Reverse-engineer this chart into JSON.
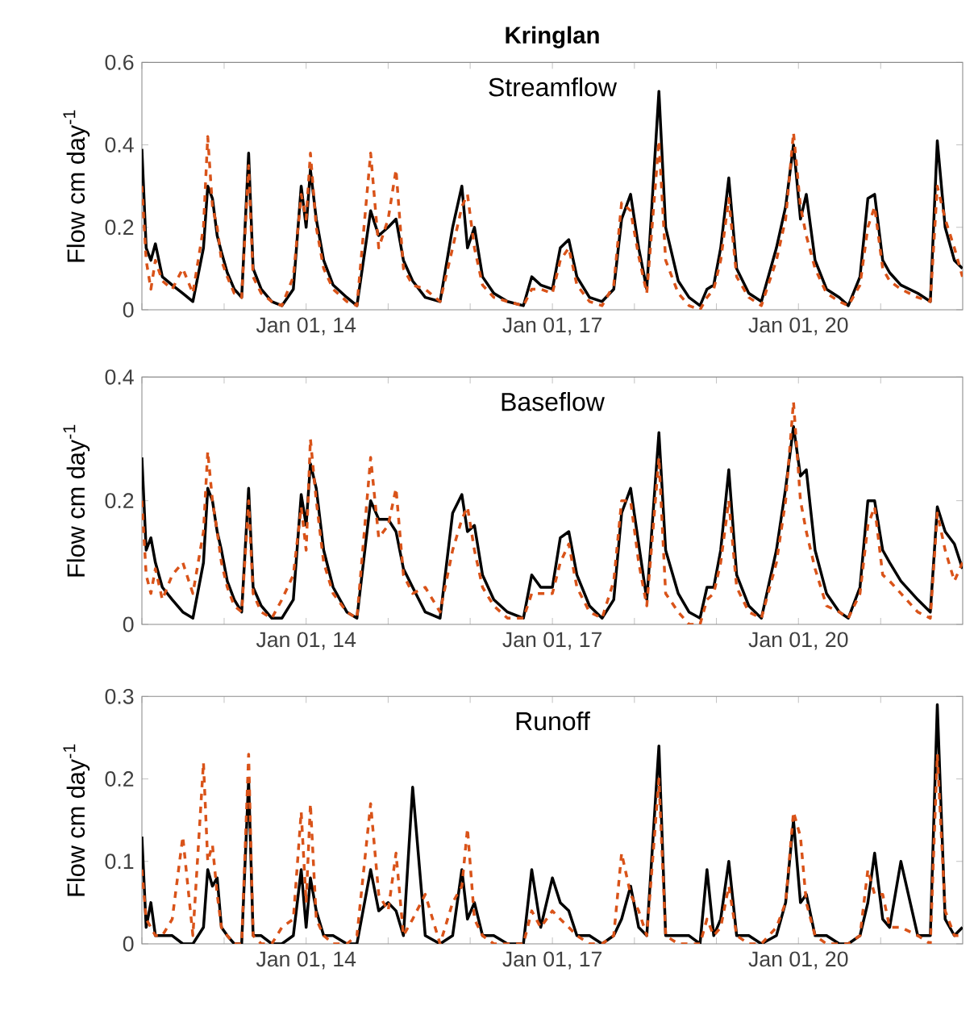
{
  "chart_data": [
    {
      "type": "line",
      "title": "Kringlan",
      "subtitle": "Streamflow",
      "ylabel": "Flow cm day$^{-1}$",
      "x": [
        "2012-01-01",
        "2012-01-20",
        "2012-02-10",
        "2012-03-01",
        "2012-04-01",
        "2012-05-15",
        "2012-07-01",
        "2012-08-15",
        "2012-10-01",
        "2012-10-20",
        "2012-11-10",
        "2012-12-01",
        "2012-12-20",
        "2013-01-15",
        "2013-02-15",
        "2013-03-20",
        "2013-04-20",
        "2013-05-10",
        "2013-06-15",
        "2013-08-01",
        "2013-09-15",
        "2013-11-05",
        "2013-12-10",
        "2014-01-01",
        "2014-01-20",
        "2014-02-15",
        "2014-03-20",
        "2014-05-01",
        "2014-07-01",
        "2014-08-15",
        "2014-10-15",
        "2014-11-20",
        "2015-01-01",
        "2015-02-05",
        "2015-03-10",
        "2015-04-20",
        "2015-06-15",
        "2015-08-20",
        "2015-10-15",
        "2015-11-25",
        "2015-12-20",
        "2016-01-20",
        "2016-02-25",
        "2016-04-15",
        "2016-06-15",
        "2016-08-25",
        "2016-10-01",
        "2016-11-10",
        "2017-01-01",
        "2017-02-05",
        "2017-03-15",
        "2017-04-20",
        "2017-06-15",
        "2017-08-10",
        "2017-10-01",
        "2017-11-05",
        "2017-12-15",
        "2018-01-20",
        "2018-02-25",
        "2018-04-20",
        "2018-05-20",
        "2018-07-15",
        "2018-09-01",
        "2018-10-20",
        "2018-11-20",
        "2018-12-20",
        "2019-01-20",
        "2019-02-25",
        "2019-04-01",
        "2019-05-25",
        "2019-07-20",
        "2019-09-25",
        "2019-11-05",
        "2019-12-10",
        "2020-01-10",
        "2020-02-05",
        "2020-03-15",
        "2020-05-05",
        "2020-07-01",
        "2020-08-10",
        "2020-10-01",
        "2020-11-05",
        "2020-12-05",
        "2021-01-10",
        "2021-02-10",
        "2021-04-01",
        "2021-06-15",
        "2021-08-10",
        "2021-09-10",
        "2021-10-15",
        "2021-11-25",
        "2021-12-31"
      ],
      "series": [
        {
          "color": "#000000",
          "line_style": "solid",
          "values": [
            0.39,
            0.15,
            0.12,
            0.16,
            0.08,
            0.06,
            0.04,
            0.02,
            0.15,
            0.3,
            0.27,
            0.18,
            0.14,
            0.09,
            0.05,
            0.03,
            0.38,
            0.1,
            0.05,
            0.02,
            0.01,
            0.05,
            0.3,
            0.2,
            0.34,
            0.22,
            0.12,
            0.06,
            0.03,
            0.01,
            0.24,
            0.18,
            0.2,
            0.22,
            0.12,
            0.07,
            0.03,
            0.02,
            0.2,
            0.3,
            0.15,
            0.2,
            0.08,
            0.04,
            0.02,
            0.01,
            0.08,
            0.06,
            0.05,
            0.15,
            0.17,
            0.08,
            0.03,
            0.02,
            0.05,
            0.22,
            0.28,
            0.15,
            0.05,
            0.53,
            0.2,
            0.07,
            0.03,
            0.01,
            0.05,
            0.06,
            0.15,
            0.32,
            0.1,
            0.04,
            0.02,
            0.15,
            0.25,
            0.4,
            0.22,
            0.28,
            0.12,
            0.05,
            0.03,
            0.01,
            0.08,
            0.27,
            0.28,
            0.12,
            0.09,
            0.06,
            0.04,
            0.02,
            0.41,
            0.2,
            0.12,
            0.1
          ]
        },
        {
          "color": "#d95319",
          "line_style": "dashed",
          "values": [
            0.3,
            0.12,
            0.05,
            0.12,
            0.07,
            0.05,
            0.1,
            0.04,
            0.2,
            0.42,
            0.25,
            0.2,
            0.12,
            0.08,
            0.04,
            0.03,
            0.35,
            0.08,
            0.04,
            0.02,
            0.01,
            0.08,
            0.28,
            0.22,
            0.38,
            0.2,
            0.1,
            0.05,
            0.02,
            0.01,
            0.38,
            0.15,
            0.22,
            0.34,
            0.1,
            0.06,
            0.05,
            0.02,
            0.15,
            0.25,
            0.28,
            0.15,
            0.06,
            0.03,
            0.02,
            0.01,
            0.05,
            0.05,
            0.04,
            0.12,
            0.15,
            0.06,
            0.02,
            0.01,
            0.06,
            0.26,
            0.24,
            0.13,
            0.04,
            0.41,
            0.12,
            0.04,
            0.01,
            0.0,
            0.03,
            0.05,
            0.12,
            0.27,
            0.08,
            0.03,
            0.01,
            0.12,
            0.22,
            0.43,
            0.25,
            0.18,
            0.1,
            0.04,
            0.02,
            0.01,
            0.06,
            0.2,
            0.25,
            0.1,
            0.07,
            0.05,
            0.03,
            0.02,
            0.3,
            0.22,
            0.15,
            0.08
          ]
        }
      ],
      "xlim": [
        "2012-01-01",
        "2022-01-01"
      ],
      "xticks": [
        {
          "value": "2012-01-01",
          "label": null
        },
        {
          "value": "2013-01-01",
          "label": null
        },
        {
          "value": "2014-01-01",
          "label": "Jan 01, 14"
        },
        {
          "value": "2015-01-01",
          "label": null
        },
        {
          "value": "2016-01-01",
          "label": null
        },
        {
          "value": "2017-01-01",
          "label": "Jan 01, 17"
        },
        {
          "value": "2018-01-01",
          "label": null
        },
        {
          "value": "2019-01-01",
          "label": null
        },
        {
          "value": "2020-01-01",
          "label": "Jan 01, 20"
        },
        {
          "value": "2021-01-01",
          "label": null
        }
      ],
      "ylim": [
        0,
        0.6
      ],
      "yticks": [
        0,
        0.2,
        0.4,
        0.6
      ]
    },
    {
      "type": "line",
      "subtitle": "Baseflow",
      "ylabel": "Flow cm day$^{-1}$",
      "x": [
        "2012-01-01",
        "2012-01-20",
        "2012-02-10",
        "2012-03-01",
        "2012-04-01",
        "2012-05-15",
        "2012-07-01",
        "2012-08-15",
        "2012-10-01",
        "2012-10-20",
        "2012-11-10",
        "2012-12-01",
        "2012-12-20",
        "2013-01-15",
        "2013-02-15",
        "2013-03-20",
        "2013-04-20",
        "2013-05-10",
        "2013-06-15",
        "2013-08-01",
        "2013-09-15",
        "2013-11-05",
        "2013-12-10",
        "2014-01-01",
        "2014-01-20",
        "2014-02-15",
        "2014-03-20",
        "2014-05-01",
        "2014-07-01",
        "2014-08-15",
        "2014-10-15",
        "2014-11-20",
        "2015-01-01",
        "2015-02-05",
        "2015-03-10",
        "2015-04-20",
        "2015-06-15",
        "2015-08-20",
        "2015-10-15",
        "2015-11-25",
        "2015-12-20",
        "2016-01-20",
        "2016-02-25",
        "2016-04-15",
        "2016-06-15",
        "2016-08-25",
        "2016-10-01",
        "2016-11-10",
        "2017-01-01",
        "2017-02-05",
        "2017-03-15",
        "2017-04-20",
        "2017-06-15",
        "2017-08-10",
        "2017-10-01",
        "2017-11-05",
        "2017-12-15",
        "2018-01-20",
        "2018-02-25",
        "2018-04-20",
        "2018-05-20",
        "2018-07-15",
        "2018-09-01",
        "2018-10-20",
        "2018-11-20",
        "2018-12-20",
        "2019-01-20",
        "2019-02-25",
        "2019-04-01",
        "2019-05-25",
        "2019-07-20",
        "2019-09-25",
        "2019-11-05",
        "2019-12-10",
        "2020-01-10",
        "2020-02-05",
        "2020-03-15",
        "2020-05-05",
        "2020-07-01",
        "2020-08-10",
        "2020-10-01",
        "2020-11-05",
        "2020-12-05",
        "2021-01-10",
        "2021-02-10",
        "2021-04-01",
        "2021-06-15",
        "2021-08-10",
        "2021-09-10",
        "2021-10-15",
        "2021-11-25",
        "2021-12-31"
      ],
      "series": [
        {
          "color": "#000000",
          "line_style": "solid",
          "values": [
            0.27,
            0.12,
            0.14,
            0.1,
            0.06,
            0.04,
            0.02,
            0.01,
            0.1,
            0.22,
            0.2,
            0.15,
            0.12,
            0.07,
            0.04,
            0.02,
            0.22,
            0.06,
            0.03,
            0.01,
            0.01,
            0.04,
            0.21,
            0.16,
            0.26,
            0.22,
            0.12,
            0.06,
            0.02,
            0.01,
            0.2,
            0.17,
            0.17,
            0.15,
            0.09,
            0.06,
            0.02,
            0.01,
            0.18,
            0.21,
            0.15,
            0.16,
            0.08,
            0.04,
            0.02,
            0.01,
            0.08,
            0.06,
            0.06,
            0.14,
            0.15,
            0.08,
            0.03,
            0.01,
            0.04,
            0.18,
            0.22,
            0.13,
            0.04,
            0.31,
            0.12,
            0.05,
            0.02,
            0.01,
            0.06,
            0.06,
            0.12,
            0.25,
            0.08,
            0.03,
            0.01,
            0.12,
            0.22,
            0.32,
            0.24,
            0.25,
            0.12,
            0.05,
            0.02,
            0.01,
            0.06,
            0.2,
            0.2,
            0.12,
            0.1,
            0.07,
            0.04,
            0.02,
            0.19,
            0.15,
            0.13,
            0.09
          ]
        },
        {
          "color": "#d95319",
          "line_style": "dashed",
          "values": [
            0.2,
            0.08,
            0.05,
            0.09,
            0.04,
            0.08,
            0.1,
            0.05,
            0.15,
            0.28,
            0.2,
            0.15,
            0.1,
            0.06,
            0.03,
            0.02,
            0.2,
            0.05,
            0.02,
            0.01,
            0.04,
            0.08,
            0.19,
            0.12,
            0.3,
            0.2,
            0.1,
            0.05,
            0.02,
            0.01,
            0.27,
            0.14,
            0.16,
            0.22,
            0.08,
            0.05,
            0.06,
            0.02,
            0.12,
            0.17,
            0.19,
            0.12,
            0.06,
            0.03,
            0.01,
            0.01,
            0.05,
            0.05,
            0.05,
            0.1,
            0.13,
            0.06,
            0.02,
            0.01,
            0.07,
            0.2,
            0.2,
            0.1,
            0.03,
            0.27,
            0.05,
            0.02,
            0.0,
            0.0,
            0.04,
            0.05,
            0.1,
            0.2,
            0.06,
            0.02,
            0.01,
            0.1,
            0.2,
            0.36,
            0.2,
            0.15,
            0.09,
            0.03,
            0.02,
            0.01,
            0.05,
            0.16,
            0.19,
            0.08,
            0.07,
            0.05,
            0.02,
            0.01,
            0.18,
            0.12,
            0.07,
            0.1
          ]
        }
      ],
      "xlim": [
        "2012-01-01",
        "2022-01-01"
      ],
      "xticks": [
        {
          "value": "2012-01-01",
          "label": null
        },
        {
          "value": "2013-01-01",
          "label": null
        },
        {
          "value": "2014-01-01",
          "label": "Jan 01, 14"
        },
        {
          "value": "2015-01-01",
          "label": null
        },
        {
          "value": "2016-01-01",
          "label": null
        },
        {
          "value": "2017-01-01",
          "label": "Jan 01, 17"
        },
        {
          "value": "2018-01-01",
          "label": null
        },
        {
          "value": "2019-01-01",
          "label": null
        },
        {
          "value": "2020-01-01",
          "label": "Jan 01, 20"
        },
        {
          "value": "2021-01-01",
          "label": null
        }
      ],
      "ylim": [
        0,
        0.4
      ],
      "yticks": [
        0,
        0.2,
        0.4
      ]
    },
    {
      "type": "line",
      "subtitle": "Runoff",
      "ylabel": "Flow cm day$^{-1}$",
      "x": [
        "2012-01-01",
        "2012-01-20",
        "2012-02-10",
        "2012-03-01",
        "2012-04-01",
        "2012-05-15",
        "2012-07-01",
        "2012-08-15",
        "2012-10-01",
        "2012-10-20",
        "2012-11-10",
        "2012-12-01",
        "2012-12-20",
        "2013-01-15",
        "2013-02-15",
        "2013-03-20",
        "2013-04-20",
        "2013-05-10",
        "2013-06-15",
        "2013-08-01",
        "2013-09-15",
        "2013-11-05",
        "2013-12-10",
        "2014-01-01",
        "2014-01-20",
        "2014-02-15",
        "2014-03-20",
        "2014-05-01",
        "2014-07-01",
        "2014-08-15",
        "2014-10-15",
        "2014-11-20",
        "2015-01-01",
        "2015-02-05",
        "2015-03-10",
        "2015-04-20",
        "2015-06-15",
        "2015-08-20",
        "2015-10-15",
        "2015-11-25",
        "2015-12-20",
        "2016-01-20",
        "2016-02-25",
        "2016-04-15",
        "2016-06-15",
        "2016-08-25",
        "2016-10-01",
        "2016-11-10",
        "2017-01-01",
        "2017-02-05",
        "2017-03-15",
        "2017-04-20",
        "2017-06-15",
        "2017-08-10",
        "2017-10-01",
        "2017-11-05",
        "2017-12-15",
        "2018-01-20",
        "2018-02-25",
        "2018-04-20",
        "2018-05-20",
        "2018-07-15",
        "2018-09-01",
        "2018-10-20",
        "2018-11-20",
        "2018-12-20",
        "2019-01-20",
        "2019-02-25",
        "2019-04-01",
        "2019-05-25",
        "2019-07-20",
        "2019-09-25",
        "2019-11-05",
        "2019-12-10",
        "2020-01-10",
        "2020-02-05",
        "2020-03-15",
        "2020-05-05",
        "2020-07-01",
        "2020-08-10",
        "2020-10-01",
        "2020-11-05",
        "2020-12-05",
        "2021-01-10",
        "2021-02-10",
        "2021-04-01",
        "2021-06-15",
        "2021-08-10",
        "2021-09-10",
        "2021-10-15",
        "2021-11-25",
        "2021-12-31"
      ],
      "series": [
        {
          "color": "#000000",
          "line_style": "solid",
          "values": [
            0.13,
            0.02,
            0.05,
            0.01,
            0.01,
            0.01,
            0.0,
            0.0,
            0.02,
            0.09,
            0.07,
            0.08,
            0.02,
            0.01,
            0.0,
            0.0,
            0.2,
            0.01,
            0.01,
            0.0,
            0.0,
            0.01,
            0.09,
            0.02,
            0.08,
            0.04,
            0.01,
            0.01,
            0.0,
            0.0,
            0.09,
            0.04,
            0.05,
            0.04,
            0.01,
            0.19,
            0.01,
            0.0,
            0.01,
            0.09,
            0.03,
            0.05,
            0.01,
            0.01,
            0.0,
            0.0,
            0.09,
            0.02,
            0.08,
            0.05,
            0.04,
            0.01,
            0.01,
            0.0,
            0.01,
            0.03,
            0.07,
            0.02,
            0.01,
            0.24,
            0.01,
            0.01,
            0.01,
            0.0,
            0.09,
            0.01,
            0.03,
            0.1,
            0.01,
            0.01,
            0.0,
            0.01,
            0.05,
            0.15,
            0.05,
            0.06,
            0.01,
            0.01,
            0.0,
            0.0,
            0.01,
            0.05,
            0.11,
            0.03,
            0.02,
            0.1,
            0.01,
            0.01,
            0.29,
            0.03,
            0.01,
            0.02
          ]
        },
        {
          "color": "#d95319",
          "line_style": "dashed",
          "values": [
            0.09,
            0.03,
            0.02,
            0.01,
            0.01,
            0.03,
            0.13,
            0.01,
            0.22,
            0.1,
            0.12,
            0.06,
            0.02,
            0.01,
            0.0,
            0.0,
            0.23,
            0.01,
            0.0,
            0.0,
            0.02,
            0.03,
            0.16,
            0.05,
            0.17,
            0.03,
            0.01,
            0.0,
            0.0,
            0.01,
            0.17,
            0.06,
            0.04,
            0.11,
            0.01,
            0.03,
            0.06,
            0.0,
            0.05,
            0.07,
            0.14,
            0.03,
            0.01,
            0.0,
            0.0,
            0.0,
            0.04,
            0.02,
            0.04,
            0.03,
            0.02,
            0.01,
            0.0,
            0.0,
            0.01,
            0.11,
            0.06,
            0.04,
            0.01,
            0.2,
            0.01,
            0.0,
            0.0,
            0.0,
            0.03,
            0.01,
            0.02,
            0.07,
            0.01,
            0.0,
            0.0,
            0.02,
            0.05,
            0.16,
            0.13,
            0.05,
            0.01,
            0.0,
            0.0,
            0.0,
            0.01,
            0.09,
            0.06,
            0.06,
            0.02,
            0.02,
            0.01,
            0.0,
            0.23,
            0.04,
            0.01,
            0.01
          ]
        }
      ],
      "xlim": [
        "2012-01-01",
        "2022-01-01"
      ],
      "xticks": [
        {
          "value": "2012-01-01",
          "label": null
        },
        {
          "value": "2013-01-01",
          "label": null
        },
        {
          "value": "2014-01-01",
          "label": "Jan 01, 14"
        },
        {
          "value": "2015-01-01",
          "label": null
        },
        {
          "value": "2016-01-01",
          "label": null
        },
        {
          "value": "2017-01-01",
          "label": "Jan 01, 17"
        },
        {
          "value": "2018-01-01",
          "label": null
        },
        {
          "value": "2019-01-01",
          "label": null
        },
        {
          "value": "2020-01-01",
          "label": "Jan 01, 20"
        },
        {
          "value": "2021-01-01",
          "label": null
        }
      ],
      "ylim": [
        0,
        0.3
      ],
      "yticks": [
        0,
        0.1,
        0.2,
        0.3
      ]
    }
  ]
}
